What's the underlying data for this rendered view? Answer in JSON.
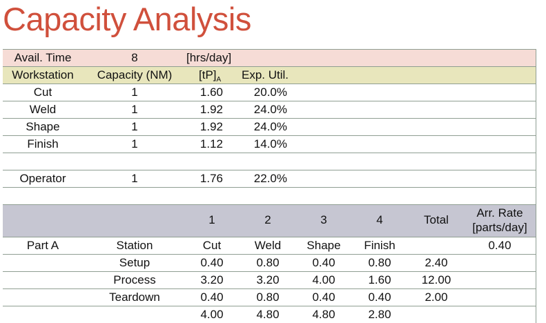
{
  "title": "Capacity Analysis",
  "avail": {
    "label": "Avail. Time",
    "value": "8",
    "unit": "[hrs/day]"
  },
  "ws_header": {
    "workstation": "Workstation",
    "capacity": "Capacity (NM)",
    "tp": "[tP]",
    "tp_sub": "A",
    "util": "Exp. Util."
  },
  "workstations": [
    {
      "name": "Cut",
      "capacity": "1",
      "tp": "1.60",
      "util": "20.0%"
    },
    {
      "name": "Weld",
      "capacity": "1",
      "tp": "1.92",
      "util": "24.0%"
    },
    {
      "name": "Shape",
      "capacity": "1",
      "tp": "1.92",
      "util": "24.0%"
    },
    {
      "name": "Finish",
      "capacity": "1",
      "tp": "1.12",
      "util": "14.0%"
    }
  ],
  "operator": {
    "name": "Operator",
    "capacity": "1",
    "tp": "1.76",
    "util": "22.0%"
  },
  "part_header": {
    "cols": [
      "1",
      "2",
      "3",
      "4"
    ],
    "total": "Total",
    "arr_rate_1": "Arr. Rate",
    "arr_rate_2": "[parts/day]"
  },
  "part": {
    "name": "Part A",
    "station_label": "Station",
    "stations": [
      "Cut",
      "Weld",
      "Shape",
      "Finish"
    ],
    "arr_rate": "0.40",
    "rows": [
      {
        "label": "Setup",
        "values": [
          "0.40",
          "0.80",
          "0.40",
          "0.80"
        ],
        "total": "2.40"
      },
      {
        "label": "Process",
        "values": [
          "3.20",
          "3.20",
          "4.00",
          "1.60"
        ],
        "total": "12.00"
      },
      {
        "label": "Teardown",
        "values": [
          "0.40",
          "0.80",
          "0.40",
          "0.40"
        ],
        "total": "2.00"
      }
    ],
    "sums": [
      "4.00",
      "4.80",
      "4.80",
      "2.80"
    ]
  },
  "colors": {
    "title": "#d0503c",
    "avail_row": "#f6dcd6",
    "header_row": "#e8e6bc",
    "part_header": "#c6c6d2"
  }
}
